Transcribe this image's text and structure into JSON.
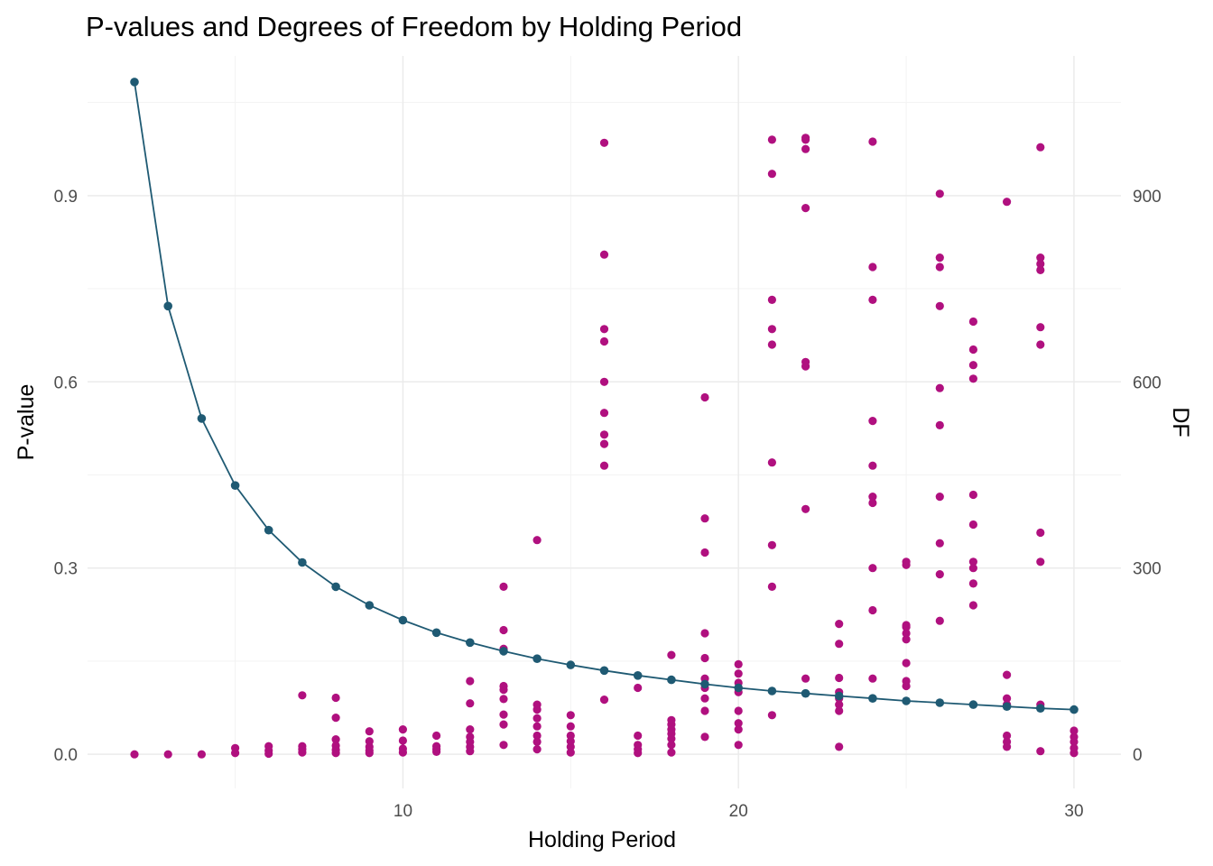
{
  "chart_data": {
    "type": "scatter",
    "title": "P-values and Degrees of Freedom by Holding Period",
    "xlabel": "Holding Period",
    "ylabel": "P-value",
    "y2label": "DF",
    "xlim": [
      0.6,
      31.4
    ],
    "ylim": [
      -0.055,
      1.125
    ],
    "y2lim": [
      -55,
      1125
    ],
    "x_ticks": [
      "10",
      "20",
      "30"
    ],
    "y_ticks": [
      "0.0",
      "0.3",
      "0.6",
      "0.9"
    ],
    "y2_ticks": [
      "0",
      "300",
      "600",
      "900"
    ],
    "grid": true,
    "colors": {
      "pvalue": "#b0107f",
      "df": "#1f5a73"
    },
    "series": [
      {
        "name": "P-value",
        "kind": "points",
        "points": [
          [
            2,
            0.0
          ],
          [
            3,
            0.0
          ],
          [
            4,
            0.0
          ],
          [
            5,
            0.002
          ],
          [
            5,
            0.01
          ],
          [
            6,
            0.001
          ],
          [
            6,
            0.006
          ],
          [
            6,
            0.013
          ],
          [
            7,
            0.003
          ],
          [
            7,
            0.008
          ],
          [
            7,
            0.013
          ],
          [
            7,
            0.095
          ],
          [
            8,
            0.002
          ],
          [
            8,
            0.007
          ],
          [
            8,
            0.014
          ],
          [
            8,
            0.024
          ],
          [
            8,
            0.059
          ],
          [
            8,
            0.091
          ],
          [
            9,
            0.002
          ],
          [
            9,
            0.006
          ],
          [
            9,
            0.012
          ],
          [
            9,
            0.021
          ],
          [
            9,
            0.037
          ],
          [
            10,
            0.003
          ],
          [
            10,
            0.009
          ],
          [
            10,
            0.022
          ],
          [
            10,
            0.04
          ],
          [
            11,
            0.004
          ],
          [
            11,
            0.008
          ],
          [
            11,
            0.013
          ],
          [
            11,
            0.03
          ],
          [
            12,
            0.005
          ],
          [
            12,
            0.012
          ],
          [
            12,
            0.02
          ],
          [
            12,
            0.028
          ],
          [
            12,
            0.04
          ],
          [
            12,
            0.082
          ],
          [
            12,
            0.118
          ],
          [
            13,
            0.015
          ],
          [
            13,
            0.048
          ],
          [
            13,
            0.064
          ],
          [
            13,
            0.089
          ],
          [
            13,
            0.104
          ],
          [
            13,
            0.11
          ],
          [
            13,
            0.17
          ],
          [
            13,
            0.2
          ],
          [
            13,
            0.27
          ],
          [
            14,
            0.008
          ],
          [
            14,
            0.02
          ],
          [
            14,
            0.03
          ],
          [
            14,
            0.045
          ],
          [
            14,
            0.058
          ],
          [
            14,
            0.072
          ],
          [
            14,
            0.08
          ],
          [
            14,
            0.345
          ],
          [
            15,
            0.003
          ],
          [
            15,
            0.012
          ],
          [
            15,
            0.021
          ],
          [
            15,
            0.03
          ],
          [
            15,
            0.045
          ],
          [
            15,
            0.063
          ],
          [
            16,
            0.088
          ],
          [
            16,
            0.465
          ],
          [
            16,
            0.5
          ],
          [
            16,
            0.515
          ],
          [
            16,
            0.55
          ],
          [
            16,
            0.6
          ],
          [
            16,
            0.665
          ],
          [
            16,
            0.685
          ],
          [
            16,
            0.805
          ],
          [
            16,
            0.985
          ],
          [
            17,
            0.002
          ],
          [
            17,
            0.008
          ],
          [
            17,
            0.015
          ],
          [
            17,
            0.03
          ],
          [
            17,
            0.107
          ],
          [
            18,
            0.003
          ],
          [
            18,
            0.015
          ],
          [
            18,
            0.025
          ],
          [
            18,
            0.033
          ],
          [
            18,
            0.04
          ],
          [
            18,
            0.048
          ],
          [
            18,
            0.055
          ],
          [
            18,
            0.16
          ],
          [
            19,
            0.028
          ],
          [
            19,
            0.07
          ],
          [
            19,
            0.09
          ],
          [
            19,
            0.107
          ],
          [
            19,
            0.122
          ],
          [
            19,
            0.155
          ],
          [
            19,
            0.195
          ],
          [
            19,
            0.325
          ],
          [
            19,
            0.38
          ],
          [
            19,
            0.575
          ],
          [
            20,
            0.015
          ],
          [
            20,
            0.04
          ],
          [
            20,
            0.05
          ],
          [
            20,
            0.07
          ],
          [
            20,
            0.1
          ],
          [
            20,
            0.115
          ],
          [
            20,
            0.13
          ],
          [
            20,
            0.145
          ],
          [
            21,
            0.063
          ],
          [
            21,
            0.27
          ],
          [
            21,
            0.337
          ],
          [
            21,
            0.47
          ],
          [
            21,
            0.66
          ],
          [
            21,
            0.685
          ],
          [
            21,
            0.732
          ],
          [
            21,
            0.935
          ],
          [
            21,
            0.99
          ],
          [
            22,
            0.122
          ],
          [
            22,
            0.395
          ],
          [
            22,
            0.625
          ],
          [
            22,
            0.632
          ],
          [
            22,
            0.88
          ],
          [
            22,
            0.975
          ],
          [
            22,
            0.99
          ],
          [
            22,
            0.993
          ],
          [
            23,
            0.012
          ],
          [
            23,
            0.07
          ],
          [
            23,
            0.08
          ],
          [
            23,
            0.09
          ],
          [
            23,
            0.1
          ],
          [
            23,
            0.123
          ],
          [
            23,
            0.178
          ],
          [
            23,
            0.21
          ],
          [
            24,
            0.122
          ],
          [
            24,
            0.232
          ],
          [
            24,
            0.3
          ],
          [
            24,
            0.405
          ],
          [
            24,
            0.415
          ],
          [
            24,
            0.465
          ],
          [
            24,
            0.537
          ],
          [
            24,
            0.732
          ],
          [
            24,
            0.785
          ],
          [
            24,
            0.987
          ],
          [
            25,
            0.11
          ],
          [
            25,
            0.118
          ],
          [
            25,
            0.147
          ],
          [
            25,
            0.185
          ],
          [
            25,
            0.195
          ],
          [
            25,
            0.205
          ],
          [
            25,
            0.208
          ],
          [
            25,
            0.305
          ],
          [
            25,
            0.31
          ],
          [
            26,
            0.215
          ],
          [
            26,
            0.29
          ],
          [
            26,
            0.34
          ],
          [
            26,
            0.415
          ],
          [
            26,
            0.53
          ],
          [
            26,
            0.59
          ],
          [
            26,
            0.722
          ],
          [
            26,
            0.785
          ],
          [
            26,
            0.8
          ],
          [
            26,
            0.903
          ],
          [
            27,
            0.24
          ],
          [
            27,
            0.275
          ],
          [
            27,
            0.3
          ],
          [
            27,
            0.31
          ],
          [
            27,
            0.37
          ],
          [
            27,
            0.418
          ],
          [
            27,
            0.605
          ],
          [
            27,
            0.627
          ],
          [
            27,
            0.652
          ],
          [
            27,
            0.697
          ],
          [
            28,
            0.012
          ],
          [
            28,
            0.02
          ],
          [
            28,
            0.03
          ],
          [
            28,
            0.08
          ],
          [
            28,
            0.09
          ],
          [
            28,
            0.128
          ],
          [
            28,
            0.89
          ],
          [
            29,
            0.005
          ],
          [
            29,
            0.08
          ],
          [
            29,
            0.31
          ],
          [
            29,
            0.357
          ],
          [
            29,
            0.66
          ],
          [
            29,
            0.688
          ],
          [
            29,
            0.78
          ],
          [
            29,
            0.79
          ],
          [
            29,
            0.8
          ],
          [
            29,
            0.978
          ],
          [
            30,
            0.002
          ],
          [
            30,
            0.01
          ],
          [
            30,
            0.02
          ],
          [
            30,
            0.028
          ],
          [
            30,
            0.038
          ]
        ]
      },
      {
        "name": "DF",
        "kind": "line+points",
        "axis": "right",
        "points": [
          [
            2,
            1083
          ],
          [
            3,
            722
          ],
          [
            4,
            541
          ],
          [
            5,
            433
          ],
          [
            6,
            361
          ],
          [
            7,
            309
          ],
          [
            8,
            270
          ],
          [
            9,
            240
          ],
          [
            10,
            216
          ],
          [
            11,
            196
          ],
          [
            12,
            180
          ],
          [
            13,
            166
          ],
          [
            14,
            154
          ],
          [
            15,
            144
          ],
          [
            16,
            135
          ],
          [
            17,
            127
          ],
          [
            18,
            120
          ],
          [
            19,
            113
          ],
          [
            20,
            107
          ],
          [
            21,
            102
          ],
          [
            22,
            98
          ],
          [
            23,
            94
          ],
          [
            24,
            90
          ],
          [
            25,
            86
          ],
          [
            26,
            83
          ],
          [
            27,
            80
          ],
          [
            28,
            77
          ],
          [
            29,
            74
          ],
          [
            30,
            72
          ]
        ]
      }
    ]
  }
}
